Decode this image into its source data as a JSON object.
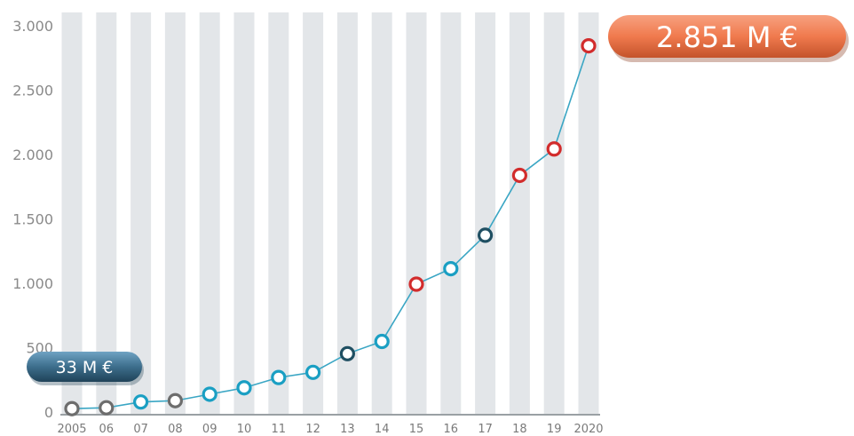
{
  "chart_data": {
    "type": "line",
    "categories": [
      "2005",
      "06",
      "07",
      "08",
      "09",
      "10",
      "11",
      "12",
      "13",
      "14",
      "15",
      "16",
      "17",
      "18",
      "19",
      "2020"
    ],
    "values": [
      33,
      40,
      85,
      95,
      145,
      195,
      275,
      315,
      460,
      555,
      1000,
      1120,
      1380,
      1845,
      2050,
      2851
    ],
    "point_colors": [
      "#6d6d6d",
      "#6d6d6d",
      "#1a9fc3",
      "#6d6d6d",
      "#1a9fc3",
      "#1a9fc3",
      "#1a9fc3",
      "#1a9fc3",
      "#1f4f62",
      "#1a9fc3",
      "#d22c2c",
      "#1a9fc3",
      "#1f4f62",
      "#d22c2c",
      "#d22c2c",
      "#d22c2c"
    ],
    "y_ticks": [
      {
        "value": 0,
        "label": "0"
      },
      {
        "value": 500,
        "label": "500"
      },
      {
        "value": 1000,
        "label": "1.000"
      },
      {
        "value": 1500,
        "label": "1.500"
      },
      {
        "value": 2000,
        "label": "2.000"
      },
      {
        "value": 2500,
        "label": "2.500"
      },
      {
        "value": 3000,
        "label": "3.000"
      }
    ],
    "ylim": [
      0,
      3000
    ],
    "title": "",
    "xlabel": "",
    "ylabel": "",
    "grid": "vertical bands",
    "line_color": "#3aa6c4",
    "band_color": "#e3e6e9",
    "start_label": "33 M €",
    "end_label": "2.851 M €",
    "start_label_color": "#3d6e8c",
    "end_label_color": "#f07a4e"
  }
}
